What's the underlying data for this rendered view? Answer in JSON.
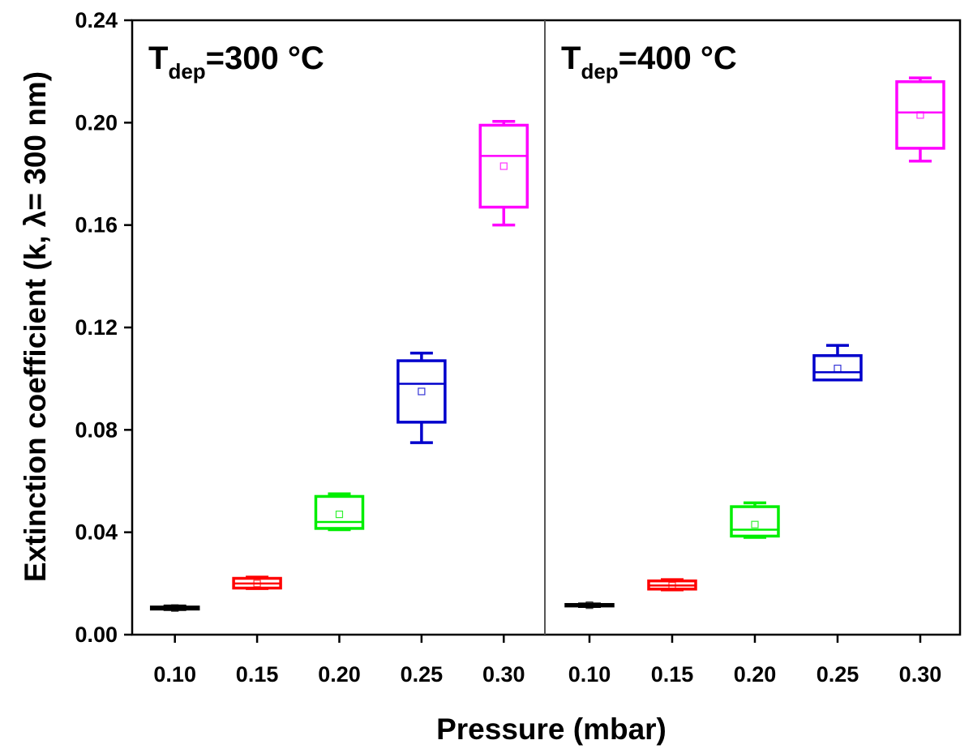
{
  "chart_data": {
    "type": "box",
    "xlabel": "Pressure (mbar)",
    "ylabel": "Extinction coefficient (k, λ= 300 nm)",
    "ylim": [
      0,
      0.24
    ],
    "yticks": [
      "0.00",
      "0.04",
      "0.08",
      "0.12",
      "0.16",
      "0.20",
      "0.24"
    ],
    "categories": [
      "0.10",
      "0.15",
      "0.20",
      "0.25",
      "0.30"
    ],
    "series_colors": [
      "#000000",
      "#ff0000",
      "#00ee00",
      "#0000cc",
      "#ff00ff"
    ],
    "grid": false,
    "panels": [
      {
        "label_main": "T",
        "label_sub": "dep",
        "label_rest": "=300 °C",
        "boxes": [
          {
            "category": "0.10",
            "min": 0.0098,
            "q1": 0.01,
            "median": 0.0103,
            "q3": 0.0108,
            "max": 0.0112,
            "mean": 0.0104
          },
          {
            "category": "0.15",
            "min": 0.018,
            "q1": 0.0182,
            "median": 0.02,
            "q3": 0.022,
            "max": 0.0225,
            "mean": 0.02
          },
          {
            "category": "0.20",
            "min": 0.041,
            "q1": 0.0415,
            "median": 0.044,
            "q3": 0.054,
            "max": 0.055,
            "mean": 0.047
          },
          {
            "category": "0.25",
            "min": 0.075,
            "q1": 0.083,
            "median": 0.098,
            "q3": 0.107,
            "max": 0.11,
            "mean": 0.095
          },
          {
            "category": "0.30",
            "min": 0.16,
            "q1": 0.167,
            "median": 0.187,
            "q3": 0.199,
            "max": 0.2005,
            "mean": 0.183
          }
        ]
      },
      {
        "label_main": "T",
        "label_sub": "dep",
        "label_rest": "=400 °C",
        "boxes": [
          {
            "category": "0.10",
            "min": 0.011,
            "q1": 0.0112,
            "median": 0.0115,
            "q3": 0.0118,
            "max": 0.012,
            "mean": 0.0115
          },
          {
            "category": "0.15",
            "min": 0.0175,
            "q1": 0.0178,
            "median": 0.0192,
            "q3": 0.021,
            "max": 0.0215,
            "mean": 0.0192
          },
          {
            "category": "0.20",
            "min": 0.038,
            "q1": 0.0385,
            "median": 0.041,
            "q3": 0.05,
            "max": 0.0515,
            "mean": 0.043
          },
          {
            "category": "0.25",
            "min": 0.0995,
            "q1": 0.0995,
            "median": 0.1025,
            "q3": 0.109,
            "max": 0.113,
            "mean": 0.104
          },
          {
            "category": "0.30",
            "min": 0.185,
            "q1": 0.19,
            "median": 0.204,
            "q3": 0.216,
            "max": 0.2175,
            "mean": 0.203
          }
        ]
      }
    ]
  }
}
